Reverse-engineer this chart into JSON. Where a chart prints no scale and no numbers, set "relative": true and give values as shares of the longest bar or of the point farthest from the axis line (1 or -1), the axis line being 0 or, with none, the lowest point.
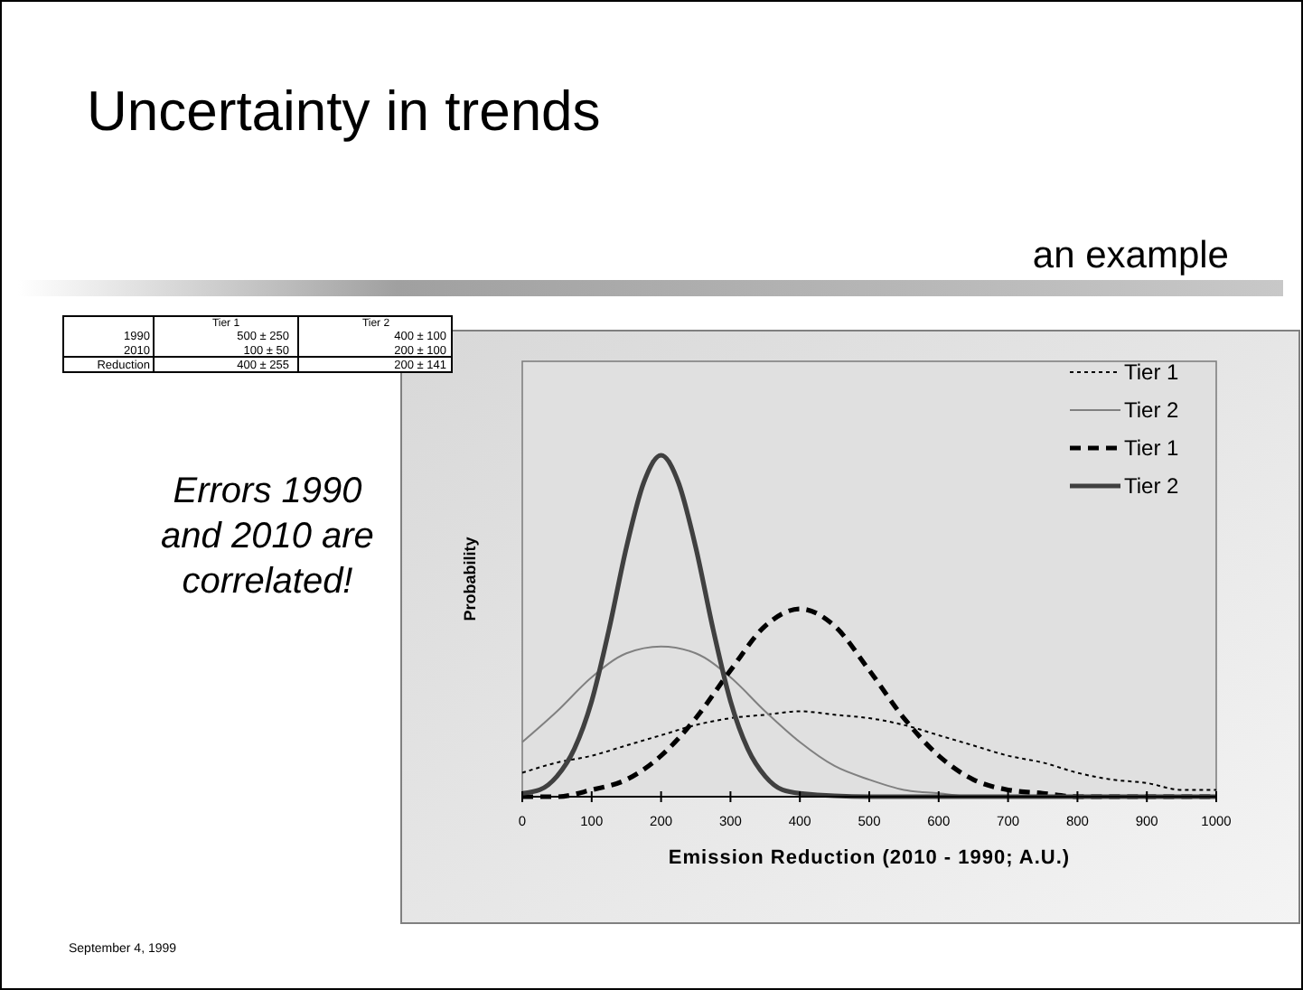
{
  "chart_data": {
    "type": "line",
    "title": "Uncertainty in trends",
    "subtitle": "an example",
    "xlabel": "Emission Reduction (2010 - 1990; A.U.)",
    "ylabel": "Probability",
    "relative": true,
    "xlim": [
      0,
      1000
    ],
    "xticks": [
      0,
      100,
      200,
      300,
      400,
      500,
      600,
      700,
      800,
      900,
      1000
    ],
    "grid": false,
    "legend": "top right",
    "marker": "none",
    "x": [
      0,
      50,
      100,
      150,
      200,
      250,
      300,
      350,
      400,
      450,
      500,
      550,
      600,
      650,
      700,
      750,
      800,
      850,
      900,
      950,
      1000
    ],
    "series": [
      {
        "name": "Tier 1",
        "color": "#000000",
        "line_style": "dotted",
        "values": [
          0.07,
          0.1,
          0.12,
          0.15,
          0.18,
          0.21,
          0.23,
          0.24,
          0.25,
          0.24,
          0.23,
          0.21,
          0.18,
          0.15,
          0.12,
          0.1,
          0.07,
          0.05,
          0.04,
          0.02,
          0.02
        ]
      },
      {
        "name": "Tier 2",
        "color": "#808080",
        "line_style": "solid",
        "values": [
          0.16,
          0.25,
          0.35,
          0.42,
          0.44,
          0.42,
          0.35,
          0.25,
          0.16,
          0.09,
          0.05,
          0.02,
          0.01,
          0,
          0,
          0,
          0,
          0,
          0,
          0,
          0
        ]
      },
      {
        "name": "Tier 1",
        "color": "#000000",
        "line_style": "dashed",
        "values": [
          0,
          0,
          0.02,
          0.05,
          0.12,
          0.23,
          0.37,
          0.5,
          0.55,
          0.5,
          0.37,
          0.23,
          0.12,
          0.05,
          0.02,
          0.01,
          0,
          0,
          0,
          0,
          0
        ]
      },
      {
        "name": "Tier 2",
        "color": "#404040",
        "line_style": "solid",
        "x": [
          0,
          25,
          50,
          75,
          100,
          125,
          150,
          175,
          200,
          225,
          250,
          275,
          300,
          325,
          350,
          375,
          400,
          500,
          600,
          700,
          800,
          900,
          1000
        ],
        "values": [
          0.01,
          0.02,
          0.06,
          0.14,
          0.28,
          0.49,
          0.73,
          0.92,
          1,
          0.92,
          0.73,
          0.49,
          0.28,
          0.14,
          0.06,
          0.02,
          0.01,
          0,
          0,
          0,
          0,
          0,
          0
        ]
      }
    ],
    "annotations": [
      "Errors 1990 and 2010 are correlated!",
      "September 4, 1999",
      "Tier 1",
      "Tier 2",
      "1990",
      "500 ± 250",
      "400 ± 100",
      "2010",
      "100 ± 50",
      "200 ± 100",
      "Reduction",
      "400 ± 255",
      "200 ± 141"
    ]
  }
}
